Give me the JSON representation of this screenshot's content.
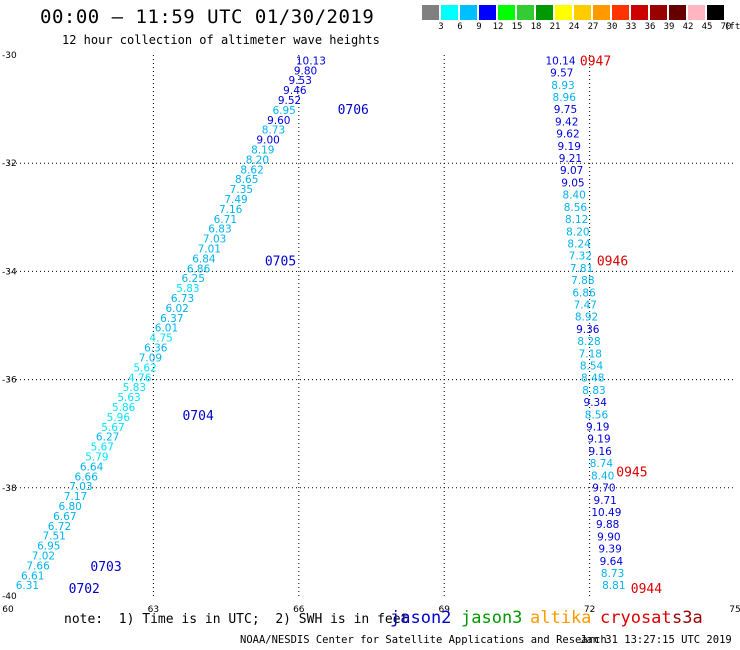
{
  "header": {
    "title": "00:00 – 11:59 UTC 01/30/2019",
    "subtitle": "12 hour collection of altimeter wave heights"
  },
  "footer": {
    "note": "note:  1) Time is in UTC;  2) SWH is in feet",
    "credit": "NOAA/NESDIS Center for Satellite Applications and Research",
    "stamp": "Jan 31 13:27:15 UTC 2019"
  },
  "satellites": [
    {
      "name": "jason2",
      "color": "#0000cc"
    },
    {
      "name": "jason3",
      "color": "#009900"
    },
    {
      "name": "altika",
      "color": "#ff9900"
    },
    {
      "name": "cryosat",
      "color": "#dd0000"
    },
    {
      "name": "s3a",
      "color": "#990000"
    }
  ],
  "legend": {
    "unit": "(ft)",
    "labels": [
      "3",
      "6",
      "9",
      "12",
      "15",
      "18",
      "21",
      "24",
      "27",
      "30",
      "33",
      "36",
      "39",
      "42",
      "45",
      "70"
    ],
    "colors": [
      "#808080",
      "#00ffff",
      "#00bfff",
      "#0000ff",
      "#00ff00",
      "#33cc33",
      "#009900",
      "#ffff00",
      "#ffcc00",
      "#ff9900",
      "#ff3300",
      "#cc0000",
      "#990000",
      "#660000",
      "#ffb6c1",
      "#000000"
    ]
  },
  "chart_data": {
    "type": "scatter",
    "title": "00:00 – 11:59 UTC 01/30/2019",
    "xlim": [
      60,
      75
    ],
    "ylim": [
      -40,
      -30
    ],
    "x_ticks": [
      60,
      63,
      66,
      69,
      72,
      75
    ],
    "y_ticks": [
      -30,
      -32,
      -34,
      -36,
      -38,
      -40
    ],
    "grid": true,
    "series": [
      {
        "name": "jason2",
        "color": "#0000cc",
        "track_start": [
          66.25,
          -30.1
        ],
        "track_end": [
          60.4,
          -39.8
        ],
        "values": [
          "10.13",
          "9.80",
          "9.53",
          "9.46",
          "9.52",
          "6.95",
          "9.60",
          "8.73",
          "9.00",
          "8.19",
          "8.20",
          "8.62",
          "8.65",
          "7.35",
          "7.49",
          "7.16",
          "6.71",
          "6.83",
          "7.03",
          "7.01",
          "6.84",
          "6.86",
          "6.25",
          "5.83",
          "6.73",
          "6.02",
          "6.37",
          "6.01",
          "4.75",
          "6.36",
          "7.09",
          "5.62",
          "4.76",
          "5.83",
          "5.63",
          "5.86",
          "5.96",
          "5.67",
          "6.27",
          "5.67",
          "5.79",
          "6.64",
          "6.66",
          "7.03",
          "7.17",
          "6.80",
          "6.67",
          "6.72",
          "7.51",
          "6.95",
          "7.02",
          "7.66",
          "6.61",
          "6.31"
        ],
        "time_labels": [
          {
            "text": "0706",
            "lon": 66.8,
            "lat": -31.0
          },
          {
            "text": "0705",
            "lon": 65.3,
            "lat": -33.8
          },
          {
            "text": "0704",
            "lon": 63.6,
            "lat": -36.65
          },
          {
            "text": "0703",
            "lon": 61.7,
            "lat": -39.45
          },
          {
            "text": "0702",
            "lon": 61.25,
            "lat": -39.85
          }
        ]
      },
      {
        "name": "cryosat",
        "color": "#dd0000",
        "track_start": [
          71.4,
          -30.1
        ],
        "track_end": [
          72.5,
          -39.8
        ],
        "values": [
          "10.14",
          "9.57",
          "8.93",
          "8.96",
          "9.75",
          "9.42",
          "9.62",
          "9.19",
          "9.21",
          "9.07",
          "9.05",
          "8.40",
          "8.56",
          "8.12",
          "8.20",
          "8.24",
          "7.32",
          "7.81",
          "7.88",
          "6.86",
          "7.47",
          "8.92",
          "9.36",
          "8.28",
          "7.18",
          "8.54",
          "8.48",
          "8.83",
          "9.34",
          "8.56",
          "9.19",
          "9.19",
          "9.16",
          "8.74",
          "8.40",
          "9.70",
          "9.71",
          "10.49",
          "9.88",
          "9.90",
          "9.39",
          "9.64",
          "8.73",
          "8.81"
        ],
        "time_labels": [
          {
            "text": "0947",
            "lon": 71.8,
            "lat": -30.1
          },
          {
            "text": "0946",
            "lon": 72.15,
            "lat": -33.8
          },
          {
            "text": "0945",
            "lon": 72.55,
            "lat": -37.7
          },
          {
            "text": "0944",
            "lon": 72.85,
            "lat": -39.85
          }
        ]
      }
    ]
  }
}
